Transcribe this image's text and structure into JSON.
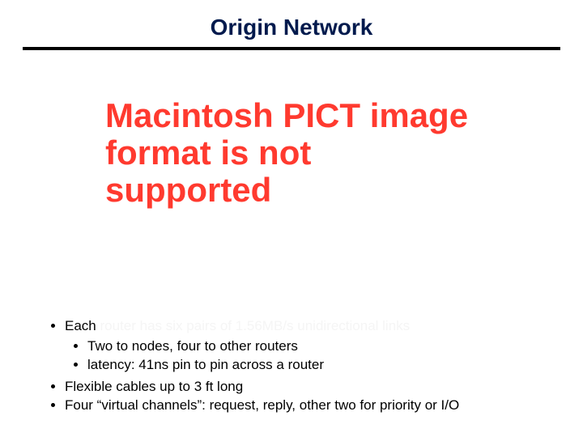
{
  "title": "Origin Network",
  "error_text": "Macintosh PICT image format is not supported",
  "bullets": {
    "b1_lead": "Each ",
    "b1_tail": "router has six pairs of 1.56MB/s unidirectional links",
    "b1a": "Two to nodes, four to other routers",
    "b1b": "latency: 41ns pin to pin across a router",
    "b2": "Flexible cables up to 3 ft long",
    "b3": "Four “virtual channels”: request, reply, other two for priority or I/O"
  },
  "colors": {
    "title": "#001a4d",
    "rule": "#000000",
    "error": "#ff3a2f",
    "body": "#000000",
    "faded": "#f5f5f5",
    "background": "#ffffff"
  }
}
